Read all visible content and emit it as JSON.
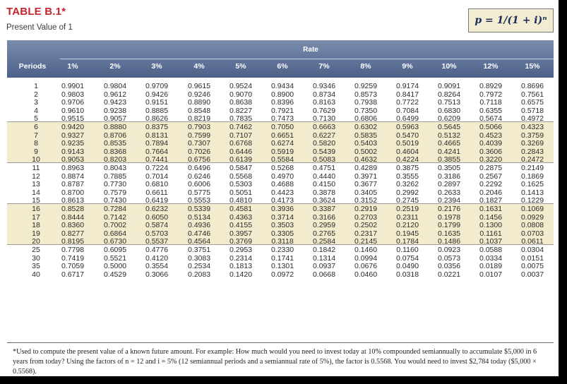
{
  "header": {
    "title": "TABLE B.1*",
    "subtitle": "Present Value of 1",
    "formula": "p = 1/(1 + i)ⁿ"
  },
  "table": {
    "rate_label": "Rate",
    "periods_label": "Periods",
    "columns": [
      "1%",
      "2%",
      "3%",
      "4%",
      "5%",
      "6%",
      "7%",
      "8%",
      "9%",
      "10%",
      "12%",
      "15%"
    ],
    "rows": [
      {
        "period": "1",
        "values": [
          "0.9901",
          "0.9804",
          "0.9709",
          "0.9615",
          "0.9524",
          "0.9434",
          "0.9346",
          "0.9259",
          "0.9174",
          "0.9091",
          "0.8929",
          "0.8696"
        ]
      },
      {
        "period": "2",
        "values": [
          "0.9803",
          "0.9612",
          "0.9426",
          "0.9246",
          "0.9070",
          "0.8900",
          "0.8734",
          "0.8573",
          "0.8417",
          "0.8264",
          "0.7972",
          "0.7561"
        ]
      },
      {
        "period": "3",
        "values": [
          "0.9706",
          "0.9423",
          "0.9151",
          "0.8890",
          "0.8638",
          "0.8396",
          "0.8163",
          "0.7938",
          "0.7722",
          "0.7513",
          "0.7118",
          "0.6575"
        ]
      },
      {
        "period": "4",
        "values": [
          "0.9610",
          "0.9238",
          "0.8885",
          "0.8548",
          "0.8227",
          "0.7921",
          "0.7629",
          "0.7350",
          "0.7084",
          "0.6830",
          "0.6355",
          "0.5718"
        ]
      },
      {
        "period": "5",
        "values": [
          "0.9515",
          "0.9057",
          "0.8626",
          "0.8219",
          "0.7835",
          "0.7473",
          "0.7130",
          "0.6806",
          "0.6499",
          "0.6209",
          "0.5674",
          "0.4972"
        ]
      },
      {
        "period": "6",
        "values": [
          "0.9420",
          "0.8880",
          "0.8375",
          "0.7903",
          "0.7462",
          "0.7050",
          "0.6663",
          "0.6302",
          "0.5963",
          "0.5645",
          "0.5066",
          "0.4323"
        ]
      },
      {
        "period": "7",
        "values": [
          "0.9327",
          "0.8706",
          "0.8131",
          "0.7599",
          "0.7107",
          "0.6651",
          "0.6227",
          "0.5835",
          "0.5470",
          "0.5132",
          "0.4523",
          "0.3759"
        ]
      },
      {
        "period": "8",
        "values": [
          "0.9235",
          "0.8535",
          "0.7894",
          "0.7307",
          "0.6768",
          "0.6274",
          "0.5820",
          "0.5403",
          "0.5019",
          "0.4665",
          "0.4039",
          "0.3269"
        ]
      },
      {
        "period": "9",
        "values": [
          "0.9143",
          "0.8368",
          "0.7664",
          "0.7026",
          "0.6446",
          "0.5919",
          "0.5439",
          "0.5002",
          "0.4604",
          "0.4241",
          "0.3606",
          "0.2843"
        ]
      },
      {
        "period": "10",
        "values": [
          "0.9053",
          "0.8203",
          "0.7441",
          "0.6756",
          "0.6139",
          "0.5584",
          "0.5083",
          "0.4632",
          "0.4224",
          "0.3855",
          "0.3220",
          "0.2472"
        ]
      },
      {
        "period": "11",
        "values": [
          "0.8963",
          "0.8043",
          "0.7224",
          "0.6496",
          "0.5847",
          "0.5268",
          "0.4751",
          "0.4289",
          "0.3875",
          "0.3505",
          "0.2875",
          "0.2149"
        ]
      },
      {
        "period": "12",
        "values": [
          "0.8874",
          "0.7885",
          "0.7014",
          "0.6246",
          "0.5568",
          "0.4970",
          "0.4440",
          "0.3971",
          "0.3555",
          "0.3186",
          "0.2567",
          "0.1869"
        ]
      },
      {
        "period": "13",
        "values": [
          "0.8787",
          "0.7730",
          "0.6810",
          "0.6006",
          "0.5303",
          "0.4688",
          "0.4150",
          "0.3677",
          "0.3262",
          "0.2897",
          "0.2292",
          "0.1625"
        ]
      },
      {
        "period": "14",
        "values": [
          "0.8700",
          "0.7579",
          "0.6611",
          "0.5775",
          "0.5051",
          "0.4423",
          "0.3878",
          "0.3405",
          "0.2992",
          "0.2633",
          "0.2046",
          "0.1413"
        ]
      },
      {
        "period": "15",
        "values": [
          "0.8613",
          "0.7430",
          "0.6419",
          "0.5553",
          "0.4810",
          "0.4173",
          "0.3624",
          "0.3152",
          "0.2745",
          "0.2394",
          "0.1827",
          "0.1229"
        ]
      },
      {
        "period": "16",
        "values": [
          "0.8528",
          "0.7284",
          "0.6232",
          "0.5339",
          "0.4581",
          "0.3936",
          "0.3387",
          "0.2919",
          "0.2519",
          "0.2176",
          "0.1631",
          "0.1069"
        ]
      },
      {
        "period": "17",
        "values": [
          "0.8444",
          "0.7142",
          "0.6050",
          "0.5134",
          "0.4363",
          "0.3714",
          "0.3166",
          "0.2703",
          "0.2311",
          "0.1978",
          "0.1456",
          "0.0929"
        ]
      },
      {
        "period": "18",
        "values": [
          "0.8360",
          "0.7002",
          "0.5874",
          "0.4936",
          "0.4155",
          "0.3503",
          "0.2959",
          "0.2502",
          "0.2120",
          "0.1799",
          "0.1300",
          "0.0808"
        ]
      },
      {
        "period": "19",
        "values": [
          "0.8277",
          "0.6864",
          "0.5703",
          "0.4746",
          "0.3957",
          "0.3305",
          "0.2765",
          "0.2317",
          "0.1945",
          "0.1635",
          "0.1161",
          "0.0703"
        ]
      },
      {
        "period": "20",
        "values": [
          "0.8195",
          "0.6730",
          "0.5537",
          "0.4564",
          "0.3769",
          "0.3118",
          "0.2584",
          "0.2145",
          "0.1784",
          "0.1486",
          "0.1037",
          "0.0611"
        ]
      },
      {
        "period": "25",
        "values": [
          "0.7798",
          "0.6095",
          "0.4776",
          "0.3751",
          "0.2953",
          "0.2330",
          "0.1842",
          "0.1460",
          "0.1160",
          "0.0923",
          "0.0588",
          "0.0304"
        ]
      },
      {
        "period": "30",
        "values": [
          "0.7419",
          "0.5521",
          "0.4120",
          "0.3083",
          "0.2314",
          "0.1741",
          "0.1314",
          "0.0994",
          "0.0754",
          "0.0573",
          "0.0334",
          "0.0151"
        ]
      },
      {
        "period": "35",
        "values": [
          "0.7059",
          "0.5000",
          "0.3554",
          "0.2534",
          "0.1813",
          "0.1301",
          "0.0937",
          "0.0676",
          "0.0490",
          "0.0356",
          "0.0189",
          "0.0075"
        ]
      },
      {
        "period": "40",
        "values": [
          "0.6717",
          "0.4529",
          "0.3066",
          "0.2083",
          "0.1420",
          "0.0972",
          "0.0668",
          "0.0460",
          "0.0318",
          "0.0221",
          "0.0107",
          "0.0037"
        ]
      }
    ]
  },
  "footnote": "*Used to compute the present value of a known future amount. For example: How much would you need to invest today at 10% compounded semiannually to accumulate $5,000 in 6 years from today? Using the factors of n = 12 and i = 5% (12 semiannual periods and a semiannual rate of 5%), the factor is 0.5568. You would need to invest $2,784 today ($5,000 × 0.5568).",
  "colors": {
    "title_red": "#c4262e",
    "header_blue": "#5b6d93",
    "band_tan": "#f3ebcd",
    "formula_bg": "#f1ecd2"
  }
}
